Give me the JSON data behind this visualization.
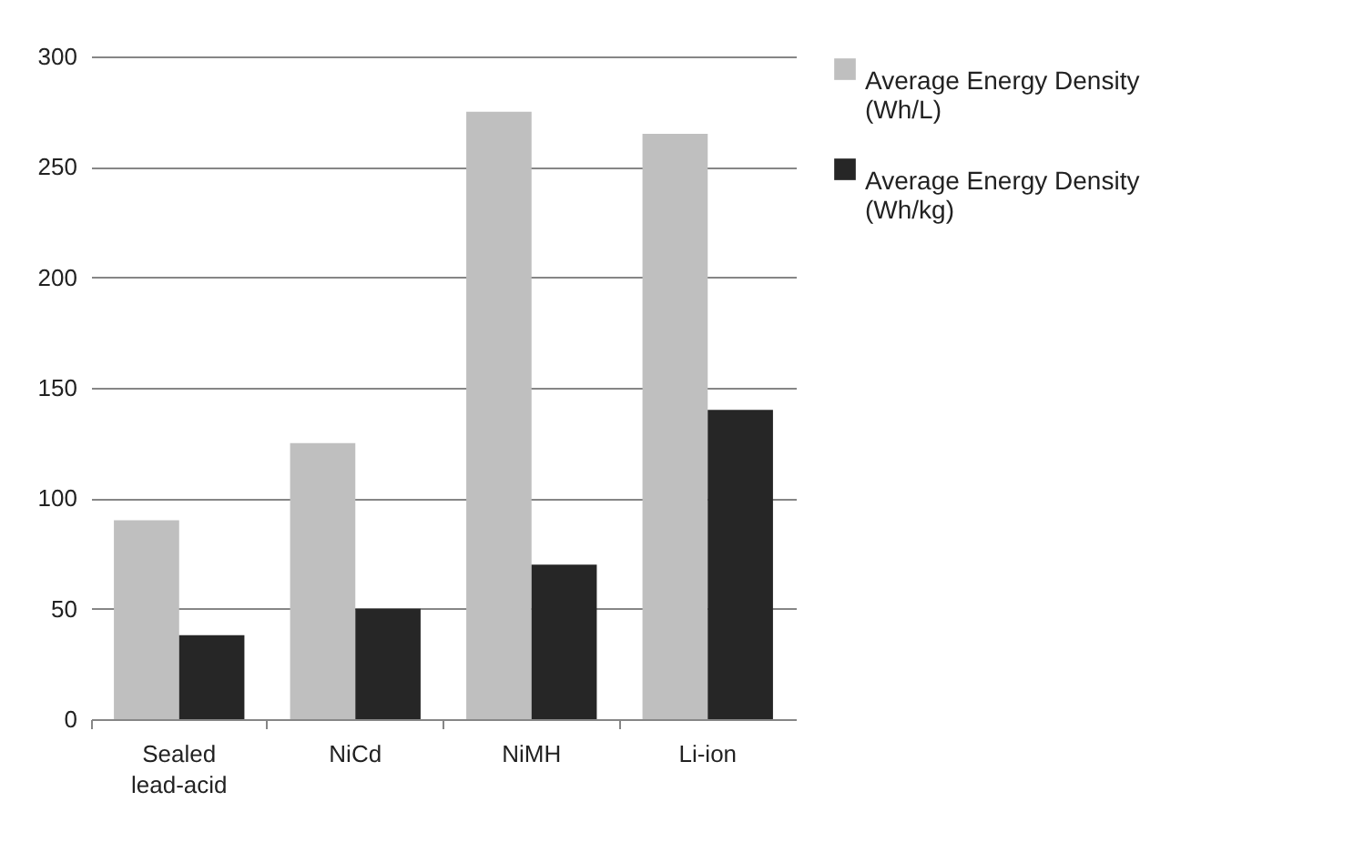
{
  "chart_data": {
    "type": "bar",
    "categories": [
      "Sealed lead-acid",
      "NiCd",
      "NiMH",
      "Li-ion"
    ],
    "series": [
      {
        "name": "Average Energy Density (Wh/L)",
        "color": "#bfbfbf",
        "values": [
          90,
          125,
          275,
          265
        ]
      },
      {
        "name": "Average Energy Density (Wh/kg)",
        "color": "#262626",
        "values": [
          38,
          50,
          70,
          140
        ]
      }
    ],
    "ylim": [
      0,
      300
    ],
    "yticks": [
      0,
      50,
      100,
      150,
      200,
      250,
      300
    ],
    "grid": "y",
    "legend": "right"
  }
}
